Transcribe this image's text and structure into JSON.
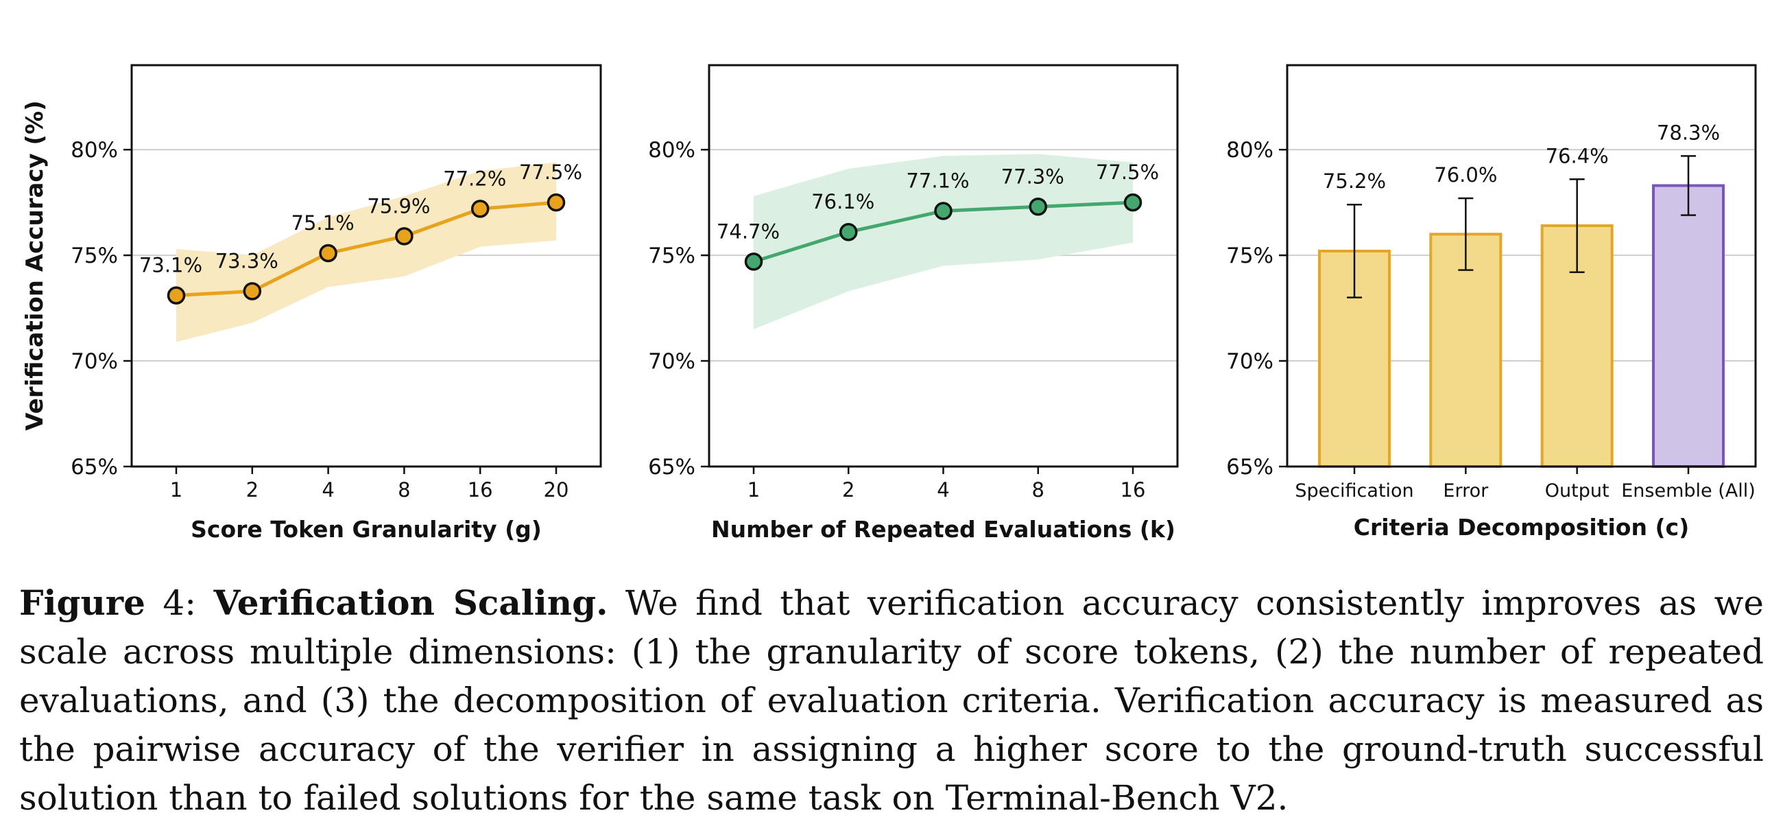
{
  "colors": {
    "gold": "#E8A21B",
    "gold_band": "#F8E9C1",
    "green": "#44A86E",
    "green_band": "#DBF0E2",
    "bar_gold_fill": "#F3D98A",
    "bar_gold_edge": "#E3A627",
    "bar_purple_fill": "#D0C3E8",
    "bar_purple_edge": "#7A55BE",
    "grid": "#CFCFCF"
  },
  "chart_data": [
    {
      "type": "line",
      "ylabel": "Verification Accuracy (%)",
      "xlabel": "Score Token Granularity (g)",
      "ylim": [
        65,
        84
      ],
      "yticks": [
        65,
        70,
        75,
        80
      ],
      "ytick_labels": [
        "65%",
        "70%",
        "75%",
        "80%"
      ],
      "grid": true,
      "categories": [
        "1",
        "2",
        "4",
        "8",
        "16",
        "20"
      ],
      "values": [
        73.1,
        73.3,
        75.1,
        75.9,
        77.2,
        77.5
      ],
      "value_labels": [
        "73.1%",
        "73.3%",
        "75.1%",
        "75.9%",
        "77.2%",
        "77.5%"
      ],
      "band_lower": [
        70.9,
        71.8,
        73.5,
        74.0,
        75.4,
        75.7
      ],
      "band_upper": [
        75.3,
        75.0,
        76.8,
        77.8,
        79.0,
        79.4
      ]
    },
    {
      "type": "line",
      "xlabel": "Number of Repeated Evaluations (k)",
      "ylim": [
        65,
        84
      ],
      "yticks": [
        65,
        70,
        75,
        80
      ],
      "ytick_labels": [
        "65%",
        "70%",
        "75%",
        "80%"
      ],
      "grid": true,
      "categories": [
        "1",
        "2",
        "4",
        "8",
        "16"
      ],
      "values": [
        74.7,
        76.1,
        77.1,
        77.3,
        77.5
      ],
      "value_labels": [
        "74.7%",
        "76.1%",
        "77.1%",
        "77.3%",
        "77.5%"
      ],
      "band_lower": [
        71.5,
        73.3,
        74.5,
        74.8,
        75.6
      ],
      "band_upper": [
        77.8,
        79.1,
        79.7,
        79.8,
        79.4
      ]
    },
    {
      "type": "bar",
      "xlabel": "Criteria Decomposition (c)",
      "ylim": [
        65,
        84
      ],
      "yticks": [
        65,
        70,
        75,
        80
      ],
      "ytick_labels": [
        "65%",
        "70%",
        "75%",
        "80%"
      ],
      "grid": true,
      "categories": [
        "Specification",
        "Error",
        "Output",
        "Ensemble (All)"
      ],
      "values": [
        75.2,
        76.0,
        76.4,
        78.3
      ],
      "value_labels": [
        "75.2%",
        "76.0%",
        "76.4%",
        "78.3%"
      ],
      "error": [
        2.2,
        1.7,
        2.2,
        1.4
      ]
    }
  ],
  "caption": {
    "figure_label": "Figure",
    "figure_number": " 4: ",
    "title": "Verification Scaling.",
    "text": " We find that verification accuracy consistently improves as we scale across multiple dimensions: (1) the granularity of score tokens, (2) the number of repeated evaluations, and (3) the decomposition of evaluation criteria. Verification accuracy is measured as the pairwise accuracy of the verifier in assigning a higher score to the ground-truth successful solution than to failed solutions for the same task on Terminal-Bench V2."
  }
}
